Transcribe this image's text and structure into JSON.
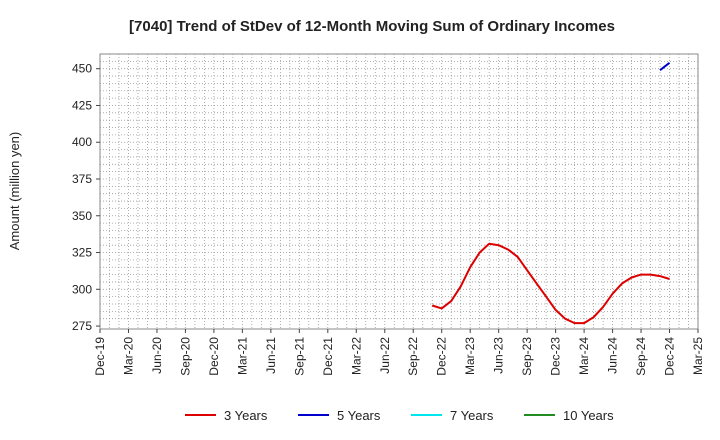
{
  "chart_data": {
    "type": "line",
    "title": "[7040]  Trend of StDev of 12-Month Moving Sum of Ordinary Incomes",
    "xlabel": "",
    "ylabel": "Amount (million yen)",
    "ylim": [
      273,
      460
    ],
    "yticks": [
      275,
      300,
      325,
      350,
      375,
      400,
      425,
      450
    ],
    "xlim": [
      "2019-12",
      "2025-03"
    ],
    "xticks": [
      "Dec-19",
      "Mar-20",
      "Jun-20",
      "Sep-20",
      "Dec-20",
      "Mar-21",
      "Jun-21",
      "Sep-21",
      "Dec-21",
      "Mar-22",
      "Jun-22",
      "Sep-22",
      "Dec-22",
      "Mar-23",
      "Jun-23",
      "Sep-23",
      "Dec-23",
      "Mar-24",
      "Jun-24",
      "Sep-24",
      "Dec-24",
      "Mar-25"
    ],
    "grid": true,
    "legend_position": "bottom",
    "series": [
      {
        "name": "3 Years",
        "color": "#dd0000",
        "points": [
          [
            "2022-11",
            289
          ],
          [
            "2022-12",
            287
          ],
          [
            "2023-01",
            292
          ],
          [
            "2023-02",
            302
          ],
          [
            "2023-03",
            315
          ],
          [
            "2023-04",
            325
          ],
          [
            "2023-05",
            331
          ],
          [
            "2023-06",
            330
          ],
          [
            "2023-07",
            327
          ],
          [
            "2023-08",
            322
          ],
          [
            "2023-09",
            313
          ],
          [
            "2023-10",
            304
          ],
          [
            "2023-11",
            295
          ],
          [
            "2023-12",
            286
          ],
          [
            "2024-01",
            280
          ],
          [
            "2024-02",
            277
          ],
          [
            "2024-03",
            277
          ],
          [
            "2024-04",
            281
          ],
          [
            "2024-05",
            288
          ],
          [
            "2024-06",
            297
          ],
          [
            "2024-07",
            304
          ],
          [
            "2024-08",
            308
          ],
          [
            "2024-09",
            310
          ],
          [
            "2024-10",
            310
          ],
          [
            "2024-11",
            309
          ],
          [
            "2024-12",
            307
          ]
        ]
      },
      {
        "name": "5 Years",
        "color": "#0000cc",
        "points": [
          [
            "2024-11",
            449
          ],
          [
            "2024-12",
            454
          ]
        ]
      },
      {
        "name": "7 Years",
        "color": "#00e5ee",
        "points": []
      },
      {
        "name": "10 Years",
        "color": "#228b22",
        "points": []
      }
    ]
  }
}
